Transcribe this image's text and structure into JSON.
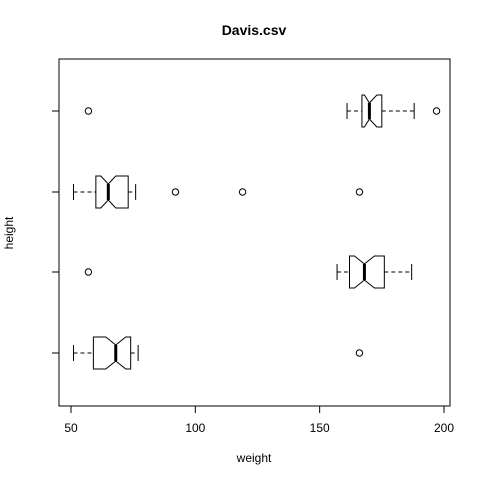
{
  "chart_data": {
    "type": "boxplot",
    "orientation": "horizontal",
    "title": "Davis.csv",
    "xlabel": "weight",
    "ylabel": "height",
    "xlim": [
      45,
      202
    ],
    "x_ticks": [
      50,
      100,
      150,
      200
    ],
    "notched": true,
    "grid": false,
    "boxes": [
      {
        "position": 1,
        "whisker_low": 51,
        "q1": 59,
        "median": 68,
        "q3": 74,
        "whisker_high": 77,
        "notch_low": 64,
        "notch_high": 72,
        "outliers": [
          166
        ]
      },
      {
        "position": 2,
        "whisker_low": 157,
        "q1": 162,
        "median": 168,
        "q3": 176,
        "whisker_high": 187,
        "notch_low": 164,
        "notch_high": 172,
        "outliers": [
          57
        ]
      },
      {
        "position": 3,
        "whisker_low": 51,
        "q1": 60,
        "median": 65,
        "q3": 73,
        "whisker_high": 76,
        "notch_low": 62,
        "notch_high": 68,
        "outliers": [
          92,
          119,
          166
        ]
      },
      {
        "position": 4,
        "whisker_low": 161,
        "q1": 167,
        "median": 170,
        "q3": 175,
        "whisker_high": 188,
        "notch_low": 168,
        "notch_high": 173,
        "outliers": [
          57,
          197
        ]
      }
    ]
  }
}
